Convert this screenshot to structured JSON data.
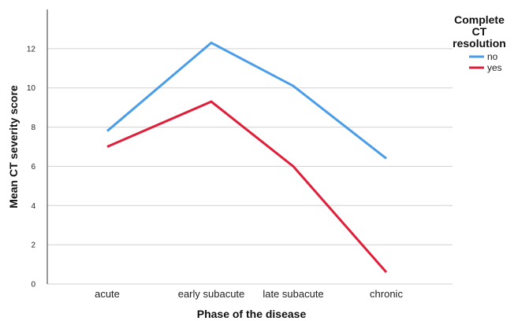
{
  "chart_data": {
    "type": "line",
    "categories": [
      "acute",
      "early subacute",
      "late subacute",
      "chronic"
    ],
    "xlabel": "Phase of the disease",
    "ylabel": "Mean CT severity score",
    "ylim": [
      0,
      14
    ],
    "yticks": [
      0,
      2,
      4,
      6,
      8,
      10,
      12
    ],
    "grid": true,
    "legend": {
      "title_lines": [
        "Complete",
        "CT",
        "resolution"
      ],
      "placement": "top-right"
    },
    "series": [
      {
        "name": "no",
        "color": "#4a9de8",
        "values": [
          7.8,
          12.3,
          10.1,
          6.4
        ]
      },
      {
        "name": "yes",
        "color": "#e0203a",
        "values": [
          7.0,
          9.3,
          6.0,
          0.6
        ]
      }
    ]
  }
}
